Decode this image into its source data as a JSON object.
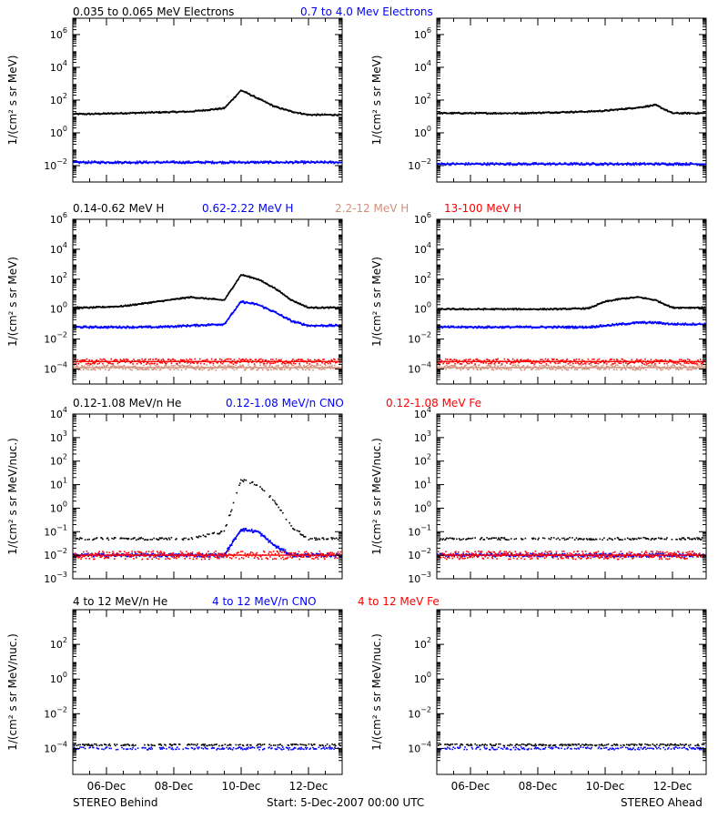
{
  "colors": {
    "black": "#000000",
    "blue": "#0000ff",
    "brown": "#d2907a",
    "red": "#ff0000"
  },
  "footer": {
    "left": "STEREO Behind",
    "center": "Start:   5-Dec-2007 00:00 UTC",
    "right": "STEREO Ahead"
  },
  "x_ticks": [
    "06-Dec",
    "08-Dec",
    "10-Dec",
    "12-Dec"
  ],
  "chart_data": [
    {
      "type": "scatter",
      "scale": "log",
      "row": 0,
      "ylabel": "1/(cm² s sr MeV)",
      "ylim_log10": [
        -3,
        7
      ],
      "ytick_exponents": [
        -2,
        0,
        2,
        4,
        6
      ],
      "legend": [
        {
          "text": "0.035 to 0.065 MeV Electrons",
          "color": "black"
        },
        {
          "text": "0.7 to 4.0 Mev Electrons",
          "color": "blue"
        }
      ],
      "x_days_since_start": [
        0.5,
        1.5,
        2.5,
        3.5,
        4.5,
        5.0,
        5.5,
        6.0,
        6.5,
        7.0
      ],
      "behind": [
        {
          "name": "0.035 to 0.065 MeV Electrons",
          "color": "black",
          "log10": [
            1.15,
            1.2,
            1.25,
            1.3,
            1.5,
            2.6,
            2.1,
            1.6,
            1.3,
            1.1
          ]
        },
        {
          "name": "0.7 to 4.0 Mev Electrons",
          "color": "blue",
          "log10": [
            -1.8,
            -1.8,
            -1.8,
            -1.8,
            -1.8,
            -1.8,
            -1.8,
            -1.8,
            -1.8,
            -1.8
          ]
        }
      ],
      "ahead": [
        {
          "name": "0.035 to 0.065 MeV Electrons",
          "color": "black",
          "log10": [
            1.2,
            1.2,
            1.2,
            1.25,
            1.3,
            1.35,
            1.45,
            1.55,
            1.7,
            1.2
          ]
        },
        {
          "name": "0.7 to 4.0 Mev Electrons",
          "color": "blue",
          "log10": [
            -1.9,
            -1.9,
            -1.9,
            -1.9,
            -1.9,
            -1.9,
            -1.9,
            -1.9,
            -1.9,
            -1.9
          ]
        }
      ]
    },
    {
      "type": "scatter",
      "scale": "log",
      "row": 1,
      "ylabel": "1/(cm² s sr MeV)",
      "ylim_log10": [
        -5,
        6
      ],
      "ytick_exponents": [
        -4,
        -2,
        0,
        2,
        4,
        6
      ],
      "legend": [
        {
          "text": "0.14-0.62 MeV H",
          "color": "black"
        },
        {
          "text": "0.62-2.22 MeV H",
          "color": "blue"
        },
        {
          "text": "2.2-12 MeV H",
          "color": "brown"
        },
        {
          "text": "13-100 MeV H",
          "color": "red"
        }
      ],
      "x_days_since_start": [
        0.5,
        1.5,
        2.5,
        3.5,
        4.5,
        5.0,
        5.5,
        6.0,
        6.5,
        7.0
      ],
      "behind": [
        {
          "name": "0.14-0.62 MeV H",
          "color": "black",
          "log10": [
            0.1,
            0.2,
            0.5,
            0.8,
            0.6,
            2.3,
            2.0,
            1.4,
            0.6,
            0.1
          ]
        },
        {
          "name": "0.62-2.22 MeV H",
          "color": "blue",
          "log10": [
            -1.2,
            -1.2,
            -1.2,
            -1.1,
            -1.0,
            0.5,
            0.3,
            -0.2,
            -0.8,
            -1.1
          ]
        },
        {
          "name": "2.2-12 MeV H",
          "color": "brown",
          "log10": [
            -3.9,
            -3.9,
            -3.9,
            -3.9,
            -3.9,
            -3.9,
            -3.9,
            -3.9,
            -3.9,
            -3.9
          ]
        },
        {
          "name": "13-100 MeV H",
          "color": "red",
          "log10": [
            -3.5,
            -3.5,
            -3.5,
            -3.5,
            -3.5,
            -3.5,
            -3.5,
            -3.5,
            -3.5,
            -3.5
          ]
        }
      ],
      "ahead": [
        {
          "name": "0.14-0.62 MeV H",
          "color": "black",
          "log10": [
            0.0,
            0.0,
            0.0,
            0.0,
            0.05,
            0.5,
            0.7,
            0.8,
            0.6,
            0.1
          ]
        },
        {
          "name": "0.62-2.22 MeV H",
          "color": "blue",
          "log10": [
            -1.2,
            -1.2,
            -1.2,
            -1.2,
            -1.2,
            -1.1,
            -1.0,
            -0.9,
            -0.9,
            -1.0
          ]
        },
        {
          "name": "2.2-12 MeV H",
          "color": "brown",
          "log10": [
            -3.9,
            -3.9,
            -3.9,
            -3.9,
            -3.9,
            -3.9,
            -3.9,
            -3.9,
            -3.9,
            -3.9
          ]
        },
        {
          "name": "13-100 MeV H",
          "color": "red",
          "log10": [
            -3.5,
            -3.5,
            -3.5,
            -3.5,
            -3.5,
            -3.5,
            -3.5,
            -3.5,
            -3.5,
            -3.5
          ]
        }
      ]
    },
    {
      "type": "scatter",
      "scale": "log",
      "row": 2,
      "ylabel": "1/(cm² s sr MeV/nuc.)",
      "ylim_log10": [
        -3,
        4
      ],
      "ytick_exponents": [
        -3,
        -2,
        -1,
        0,
        1,
        2,
        3,
        4
      ],
      "legend": [
        {
          "text": "0.12-1.08 MeV/n He",
          "color": "black"
        },
        {
          "text": "0.12-1.08 MeV/n CNO",
          "color": "blue"
        },
        {
          "text": "0.12-1.08 MeV Fe",
          "color": "red"
        }
      ],
      "x_days_since_start": [
        0.5,
        1.5,
        2.5,
        3.5,
        4.5,
        5.0,
        5.5,
        6.0,
        6.5,
        7.0
      ],
      "behind": [
        {
          "name": "0.12-1.08 MeV/n He",
          "color": "black",
          "log10": [
            -1.3,
            -1.3,
            -1.3,
            -1.3,
            -1.0,
            1.2,
            1.0,
            0.3,
            -0.8,
            -1.3
          ]
        },
        {
          "name": "0.12-1.08 MeV/n CNO",
          "color": "blue",
          "log10": [
            -2.0,
            -2.0,
            -2.0,
            -2.0,
            -2.0,
            -0.9,
            -1.0,
            -1.6,
            -2.0,
            -2.0
          ]
        },
        {
          "name": "0.12-1.08 MeV Fe",
          "color": "red",
          "log10": [
            -2.0,
            -2.0,
            -2.0,
            -2.0,
            -2.0,
            -2.0,
            -2.0,
            -2.0,
            -2.0,
            -2.0
          ]
        }
      ],
      "ahead": [
        {
          "name": "0.12-1.08 MeV/n He",
          "color": "black",
          "log10": [
            -1.3,
            -1.3,
            -1.3,
            -1.3,
            -1.3,
            -1.3,
            -1.3,
            -1.3,
            -1.3,
            -1.3
          ]
        },
        {
          "name": "0.12-1.08 MeV/n CNO",
          "color": "blue",
          "log10": [
            -2.0,
            -2.0,
            -2.0,
            -2.0,
            -2.0,
            -2.0,
            -2.0,
            -2.0,
            -2.0,
            -2.0
          ]
        },
        {
          "name": "0.12-1.08 MeV Fe",
          "color": "red",
          "log10": [
            -2.0,
            -2.0,
            -2.0,
            -2.0,
            -2.0,
            -2.0,
            -2.0,
            -2.0,
            -2.0,
            -2.0
          ]
        }
      ]
    },
    {
      "type": "scatter",
      "scale": "log",
      "row": 3,
      "ylabel": "1/(cm² s sr MeV/nuc.)",
      "ylim_log10": [
        -5.5,
        4
      ],
      "ytick_exponents": [
        -4,
        -2,
        0,
        2
      ],
      "legend": [
        {
          "text": "4 to 12 MeV/n He",
          "color": "black"
        },
        {
          "text": "4 to 12 MeV/n CNO",
          "color": "blue"
        },
        {
          "text": "4 to 12 MeV Fe",
          "color": "red"
        }
      ],
      "x_days_since_start": [
        0.5,
        1.5,
        2.5,
        3.5,
        4.5,
        5.0,
        5.5,
        6.0,
        6.5,
        7.0
      ],
      "behind": [
        {
          "name": "4 to 12 MeV/n He",
          "color": "black",
          "log10": [
            -3.8,
            -3.8,
            -3.8,
            -3.8,
            -3.8,
            -3.8,
            -3.8,
            -3.8,
            -3.8,
            -3.8
          ]
        },
        {
          "name": "4 to 12 MeV/n CNO",
          "color": "blue",
          "log10": [
            -4.0,
            -4.0,
            -4.0,
            -4.0,
            -4.0,
            -4.0,
            -4.0,
            -4.0,
            -4.0,
            -4.0
          ]
        }
      ],
      "ahead": [
        {
          "name": "4 to 12 MeV/n He",
          "color": "black",
          "log10": [
            -3.8,
            -3.8,
            -3.8,
            -3.8,
            -3.8,
            -3.8,
            -3.8,
            -3.8,
            -3.8,
            -3.8
          ]
        },
        {
          "name": "4 to 12 MeV/n CNO",
          "color": "blue",
          "log10": [
            -4.0,
            -4.0,
            -4.0,
            -4.0,
            -4.0,
            -4.0,
            -4.0,
            -4.0,
            -4.0,
            -4.0
          ]
        }
      ]
    }
  ]
}
